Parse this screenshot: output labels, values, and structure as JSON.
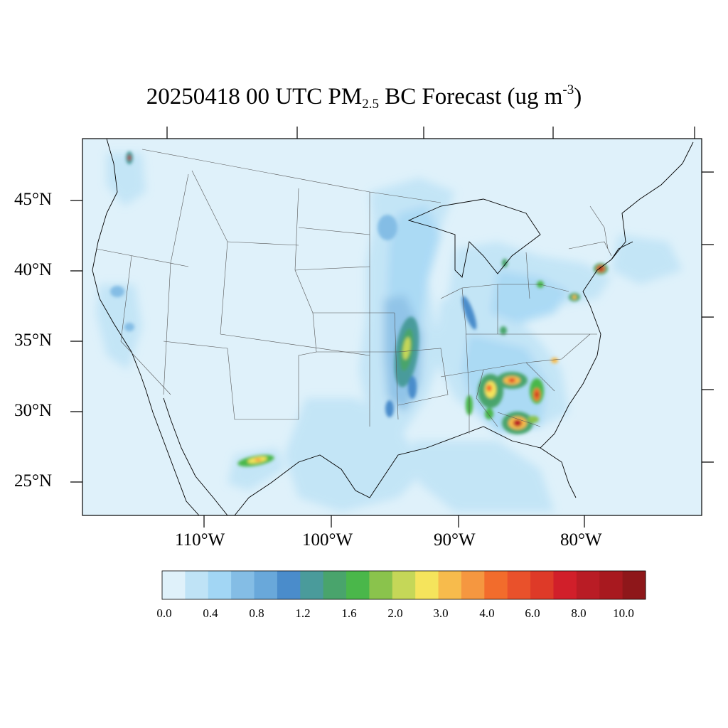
{
  "title": {
    "pre": "20250418 00 UTC PM",
    "sub": "2.5",
    "mid": " BC Forecast (ug m",
    "sup": "-3",
    "post": ")"
  },
  "map": {
    "variable": "PM2.5 black carbon forecast",
    "units": "ug m-3",
    "region": "Contiguous United States",
    "lat_labels": [
      "45°N",
      "40°N",
      "35°N",
      "30°N",
      "25°N"
    ],
    "lon_labels": [
      "110°W",
      "100°W",
      "90°W",
      "80°W"
    ],
    "ocean_color": "#dff1fa",
    "hotspots": [
      {
        "name": "western-arkansas",
        "max_class": 11
      },
      {
        "name": "eastern-alabama",
        "max_class": 14
      },
      {
        "name": "southwest-georgia",
        "max_class": 16
      },
      {
        "name": "central-georgia",
        "max_class": 14
      },
      {
        "name": "southern-new-jersey",
        "max_class": 17
      },
      {
        "name": "northern-mexico",
        "max_class": 11
      }
    ]
  },
  "colorbar": {
    "colors": [
      "#dff1fa",
      "#bfe3f6",
      "#a2d6f4",
      "#84bde5",
      "#69a8da",
      "#4a8ccb",
      "#4a9b9b",
      "#49a46c",
      "#4ab74a",
      "#8ac34c",
      "#c5d758",
      "#f5e45c",
      "#f7bb4c",
      "#f59740",
      "#f26c2c",
      "#e9512b",
      "#de3a28",
      "#d11f2a",
      "#b91c25",
      "#a8191f",
      "#8e171a"
    ],
    "tick_labels": [
      "0.0",
      "0.4",
      "0.8",
      "1.2",
      "1.6",
      "2.0",
      "3.0",
      "4.0",
      "6.0",
      "8.0",
      "10.0"
    ]
  }
}
